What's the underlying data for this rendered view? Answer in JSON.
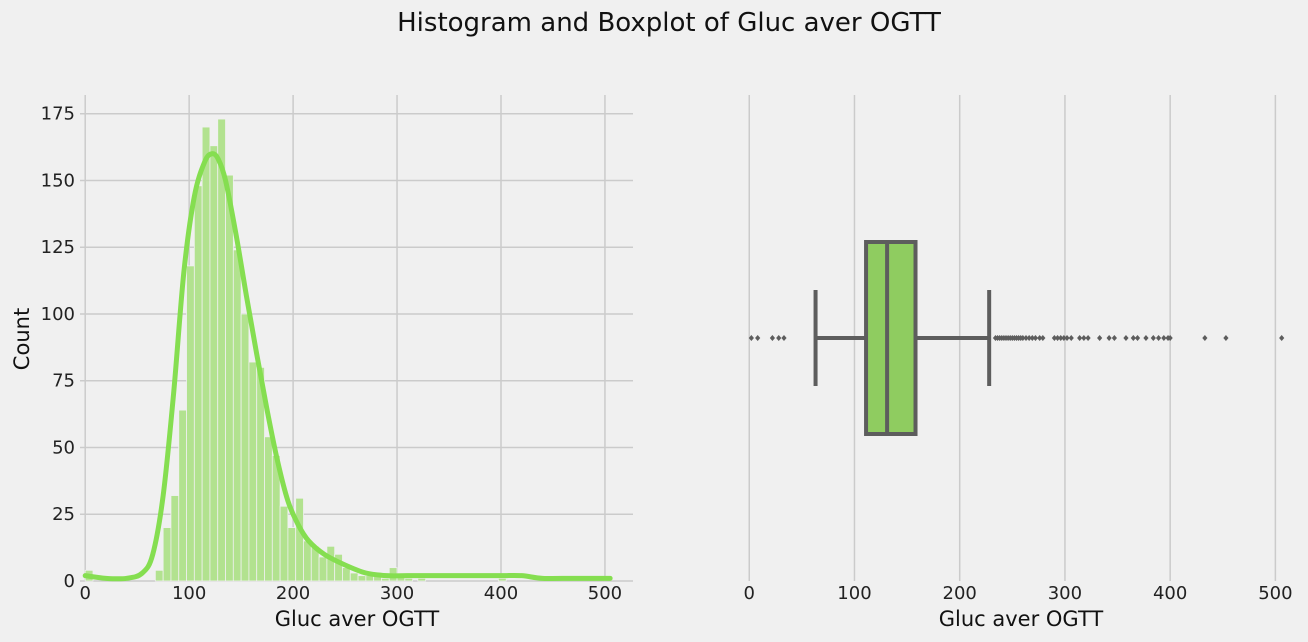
{
  "figure": {
    "title": "Histogram and Boxplot of Gluc aver OGTT"
  },
  "chart_data": [
    {
      "type": "histogram",
      "xlabel": "Gluc aver OGTT",
      "ylabel": "Count",
      "xlim": [
        -5,
        527
      ],
      "ylim": [
        0,
        182
      ],
      "grid": true,
      "xticks": [
        0,
        100,
        200,
        300,
        400,
        500
      ],
      "yticks": [
        0,
        25,
        50,
        75,
        100,
        125,
        150,
        175
      ],
      "colors": {
        "bars": "#b2e28f",
        "kde": "#85de50"
      },
      "bins": [
        {
          "x0": 0,
          "x1": 7.5,
          "count": 4
        },
        {
          "x0": 67.5,
          "x1": 75,
          "count": 4
        },
        {
          "x0": 75,
          "x1": 82.5,
          "count": 20
        },
        {
          "x0": 82.5,
          "x1": 90,
          "count": 32
        },
        {
          "x0": 90,
          "x1": 97.5,
          "count": 64
        },
        {
          "x0": 97.5,
          "x1": 105,
          "count": 118
        },
        {
          "x0": 105,
          "x1": 112.5,
          "count": 148
        },
        {
          "x0": 112.5,
          "x1": 120,
          "count": 170
        },
        {
          "x0": 120,
          "x1": 127.5,
          "count": 163
        },
        {
          "x0": 127.5,
          "x1": 135,
          "count": 173
        },
        {
          "x0": 135,
          "x1": 142.5,
          "count": 152
        },
        {
          "x0": 142.5,
          "x1": 150,
          "count": 124
        },
        {
          "x0": 150,
          "x1": 157.5,
          "count": 100
        },
        {
          "x0": 157.5,
          "x1": 165,
          "count": 82
        },
        {
          "x0": 165,
          "x1": 172.5,
          "count": 80
        },
        {
          "x0": 172.5,
          "x1": 180,
          "count": 54
        },
        {
          "x0": 180,
          "x1": 187.5,
          "count": 47
        },
        {
          "x0": 187.5,
          "x1": 195,
          "count": 28
        },
        {
          "x0": 195,
          "x1": 202.5,
          "count": 20
        },
        {
          "x0": 202.5,
          "x1": 210,
          "count": 31
        },
        {
          "x0": 210,
          "x1": 217.5,
          "count": 15
        },
        {
          "x0": 217.5,
          "x1": 225,
          "count": 13
        },
        {
          "x0": 225,
          "x1": 232.5,
          "count": 9
        },
        {
          "x0": 232.5,
          "x1": 240,
          "count": 13
        },
        {
          "x0": 240,
          "x1": 247.5,
          "count": 10
        },
        {
          "x0": 247.5,
          "x1": 255,
          "count": 5
        },
        {
          "x0": 255,
          "x1": 262.5,
          "count": 3
        },
        {
          "x0": 262.5,
          "x1": 270,
          "count": 2
        },
        {
          "x0": 270,
          "x1": 277.5,
          "count": 2
        },
        {
          "x0": 277.5,
          "x1": 285,
          "count": 3
        },
        {
          "x0": 285,
          "x1": 292.5,
          "count": 1
        },
        {
          "x0": 292.5,
          "x1": 300,
          "count": 5
        },
        {
          "x0": 300,
          "x1": 307.5,
          "count": 2
        },
        {
          "x0": 307.5,
          "x1": 315,
          "count": 1
        },
        {
          "x0": 320,
          "x1": 327.5,
          "count": 1
        },
        {
          "x0": 397.5,
          "x1": 405,
          "count": 1
        }
      ],
      "kde": {
        "x": [
          0,
          20,
          40,
          55,
          65,
          75,
          85,
          95,
          105,
          115,
          122,
          128,
          135,
          145,
          155,
          165,
          175,
          185,
          195,
          205,
          215,
          230,
          250,
          270,
          290,
          310,
          330,
          350,
          370,
          390,
          400,
          420,
          440,
          470,
          505
        ],
        "y": [
          2,
          1,
          1,
          3,
          10,
          32,
          70,
          116,
          144,
          157,
          160,
          158,
          150,
          130,
          107,
          85,
          64,
          45,
          30,
          21,
          15,
          10,
          6,
          3,
          2,
          2,
          2,
          2,
          2,
          2,
          2,
          2,
          1,
          1,
          1
        ]
      }
    },
    {
      "type": "boxplot",
      "xlabel": "Gluc aver OGTT",
      "xlim": [
        -5,
        512
      ],
      "xticks": [
        0,
        100,
        200,
        300,
        400,
        500
      ],
      "grid": true,
      "colors": {
        "box": "#8fcc60",
        "lines": "#5d5d5d"
      },
      "whisker_low": 63,
      "q1": 111,
      "median": 131,
      "q3": 158,
      "whisker_high": 228,
      "outliers": [
        2,
        8,
        22,
        28,
        33,
        234,
        236,
        238,
        240,
        242,
        244,
        246,
        248,
        250,
        252,
        254,
        256,
        258,
        260,
        263,
        266,
        269,
        272,
        276,
        279,
        290,
        293,
        296,
        299,
        302,
        306,
        314,
        318,
        322,
        333,
        342,
        347,
        358,
        365,
        369,
        377,
        384,
        389,
        394,
        398,
        400,
        433,
        453,
        506
      ]
    }
  ]
}
